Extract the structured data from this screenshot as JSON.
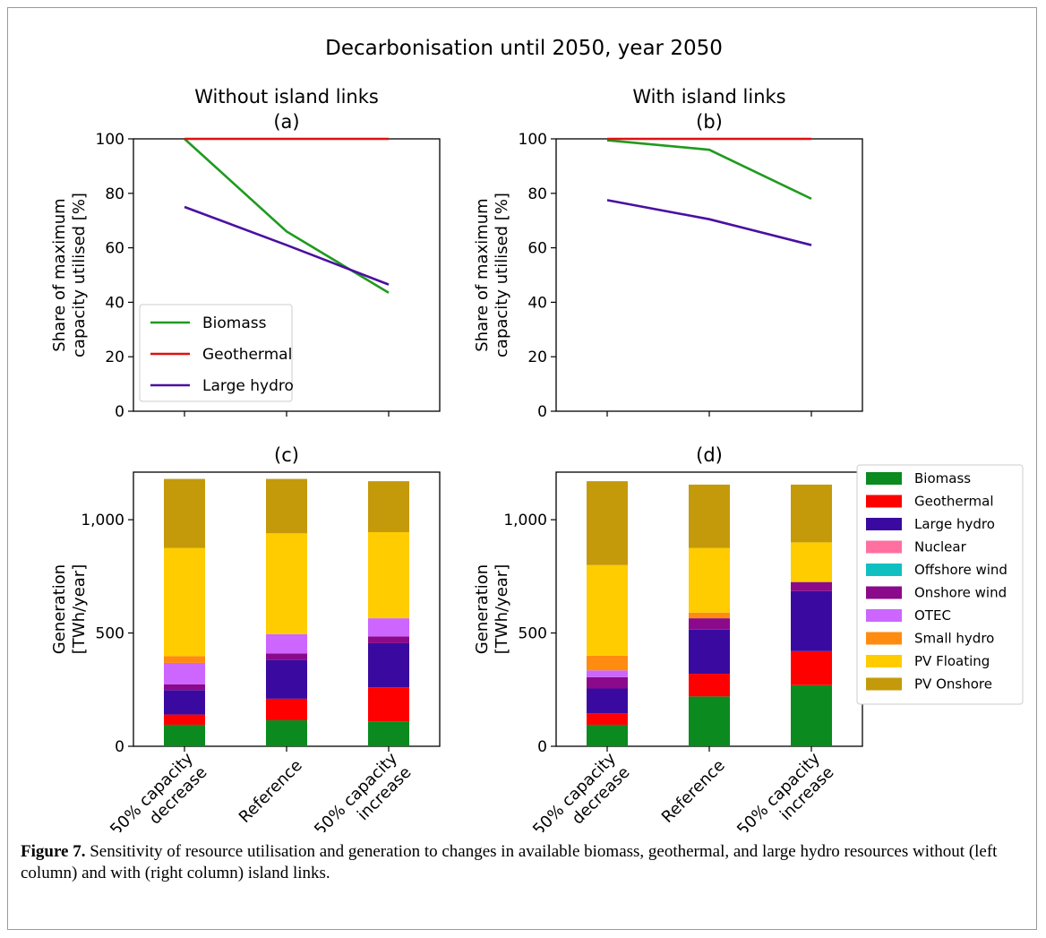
{
  "figure": {
    "suptitle": "Decarbonisation until 2050, year 2050",
    "caption_label": "Figure 7.",
    "caption_text": " Sensitivity of resource utilisation and generation to changes in available biomass, geothermal, and large hydro resources without (left column) and with (right column) island links."
  },
  "colors": {
    "Biomass": "#0a8a1f",
    "Geothermal": "#ff0000",
    "Large hydro": "#3a0aa0",
    "Nuclear": "#ff6fa0",
    "Offshore wind": "#10c0c0",
    "Onshore wind": "#8b0a8b",
    "OTEC": "#cc66ff",
    "Small hydro": "#ff8c10",
    "PV Floating": "#ffcc00",
    "PV Onshore": "#c49a0a",
    "line_Biomass": "#1f9a1f",
    "line_Geothermal": "#e01010",
    "line_Large hydro": "#4a10a0"
  },
  "scenario_labels": [
    [
      "50% capacity",
      "decrease"
    ],
    [
      "Reference"
    ],
    [
      "50% capacity",
      "increase"
    ]
  ],
  "chart_data": [
    {
      "id": "a",
      "type": "line",
      "title": "Without island links",
      "subtitle": "(a)",
      "ylabel": [
        "Share of maximum",
        "capacity utilised [%]"
      ],
      "ylim": [
        0,
        100
      ],
      "yticks": [
        0,
        20,
        40,
        60,
        80,
        100
      ],
      "categories": [
        "50% capacity decrease",
        "Reference",
        "50% capacity increase"
      ],
      "series": [
        {
          "name": "Biomass",
          "values": [
            100,
            66,
            43.5
          ]
        },
        {
          "name": "Geothermal",
          "values": [
            100,
            100,
            100
          ]
        },
        {
          "name": "Large hydro",
          "values": [
            75,
            61,
            46.5
          ]
        }
      ],
      "legend": "lower-left"
    },
    {
      "id": "b",
      "type": "line",
      "title": "With island links",
      "subtitle": "(b)",
      "ylabel": [
        "Share of maximum",
        "capacity utilised [%]"
      ],
      "ylim": [
        0,
        100
      ],
      "yticks": [
        0,
        20,
        40,
        60,
        80,
        100
      ],
      "categories": [
        "50% capacity decrease",
        "Reference",
        "50% capacity increase"
      ],
      "series": [
        {
          "name": "Biomass",
          "values": [
            99.5,
            96,
            78
          ]
        },
        {
          "name": "Geothermal",
          "values": [
            100,
            100,
            100
          ]
        },
        {
          "name": "Large hydro",
          "values": [
            77.5,
            70.5,
            61
          ]
        }
      ]
    },
    {
      "id": "c",
      "type": "bar",
      "stacked": true,
      "subtitle": "(c)",
      "ylabel": [
        "Generation",
        "[TWh/year]"
      ],
      "ylim": [
        0,
        1210
      ],
      "yticks": [
        0,
        500,
        1000
      ],
      "yticklabels": [
        "0",
        "500",
        "1,000"
      ],
      "categories": [
        "50% capacity decrease",
        "Reference",
        "50% capacity increase"
      ],
      "series": [
        {
          "name": "Biomass",
          "values": [
            95,
            115,
            110
          ]
        },
        {
          "name": "Geothermal",
          "values": [
            45,
            95,
            150
          ]
        },
        {
          "name": "Large hydro",
          "values": [
            108,
            170,
            195
          ]
        },
        {
          "name": "Nuclear",
          "values": [
            0,
            0,
            0
          ]
        },
        {
          "name": "Offshore wind",
          "values": [
            0,
            0,
            0
          ]
        },
        {
          "name": "Onshore wind",
          "values": [
            25,
            30,
            30
          ]
        },
        {
          "name": "OTEC",
          "values": [
            95,
            85,
            80
          ]
        },
        {
          "name": "Small hydro",
          "values": [
            30,
            0,
            0
          ]
        },
        {
          "name": "PV Floating",
          "values": [
            477,
            445,
            380
          ]
        },
        {
          "name": "PV Onshore",
          "values": [
            305,
            240,
            225
          ]
        }
      ]
    },
    {
      "id": "d",
      "type": "bar",
      "stacked": true,
      "subtitle": "(d)",
      "ylabel": [
        "Generation",
        "[TWh/year]"
      ],
      "ylim": [
        0,
        1210
      ],
      "yticks": [
        0,
        500,
        1000
      ],
      "yticklabels": [
        "0",
        "500",
        "1,000"
      ],
      "categories": [
        "50% capacity decrease",
        "Reference",
        "50% capacity increase"
      ],
      "series": [
        {
          "name": "Biomass",
          "values": [
            95,
            220,
            270
          ]
        },
        {
          "name": "Geothermal",
          "values": [
            50,
            100,
            150
          ]
        },
        {
          "name": "Large hydro",
          "values": [
            110,
            195,
            265
          ]
        },
        {
          "name": "Nuclear",
          "values": [
            0,
            0,
            0
          ]
        },
        {
          "name": "Offshore wind",
          "values": [
            0,
            0,
            0
          ]
        },
        {
          "name": "Onshore wind",
          "values": [
            50,
            50,
            40
          ]
        },
        {
          "name": "OTEC",
          "values": [
            30,
            0,
            0
          ]
        },
        {
          "name": "Small hydro",
          "values": [
            65,
            25,
            0
          ]
        },
        {
          "name": "PV Floating",
          "values": [
            400,
            285,
            175
          ]
        },
        {
          "name": "PV Onshore",
          "values": [
            370,
            280,
            255
          ]
        }
      ],
      "legend": "right"
    }
  ]
}
